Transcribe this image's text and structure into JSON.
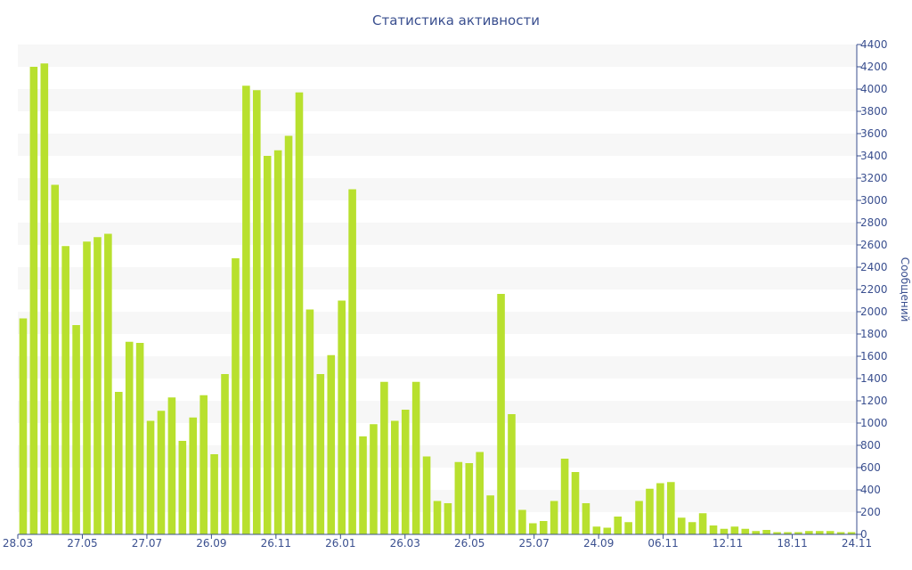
{
  "chart_data": {
    "type": "bar",
    "title": "Статистика активности",
    "ylabel": "Сообщений",
    "xlabel": "",
    "ylim": [
      0,
      4400
    ],
    "y_ticks": [
      0,
      200,
      400,
      600,
      800,
      1000,
      1200,
      1400,
      1600,
      1800,
      2000,
      2200,
      2400,
      2600,
      2800,
      3000,
      3200,
      3400,
      3600,
      3800,
      4000,
      4200,
      4400
    ],
    "x_tick_labels": [
      "28.03",
      "27.05",
      "27.07",
      "26.09",
      "26.11",
      "26.01",
      "26.03",
      "26.05",
      "25.07",
      "24.09",
      "06.11",
      "12.11",
      "18.11",
      "24.11"
    ],
    "grid": "alternating horizontal bands",
    "legend": "none",
    "y_axis_position": "right",
    "colors": {
      "bar": "#b8e02e",
      "band": "#f7f7f7",
      "axis": "#3a4f8f",
      "text": "#3a4f8f"
    },
    "values": [
      1940,
      4200,
      4230,
      3140,
      2590,
      1880,
      2630,
      2670,
      2700,
      1280,
      1730,
      1720,
      1020,
      1110,
      1230,
      840,
      1050,
      1250,
      720,
      1440,
      2480,
      4030,
      3990,
      3400,
      3450,
      3580,
      3970,
      2020,
      1440,
      1610,
      2100,
      3100,
      880,
      990,
      1370,
      1020,
      1120,
      1370,
      700,
      300,
      280,
      650,
      640,
      740,
      350,
      2160,
      1080,
      220,
      100,
      120,
      300,
      680,
      560,
      280,
      70,
      60,
      160,
      110,
      300,
      410,
      460,
      470,
      150,
      110,
      190,
      80,
      50,
      70,
      50,
      30,
      40,
      20,
      20,
      20,
      30,
      30,
      30,
      20,
      20
    ]
  }
}
